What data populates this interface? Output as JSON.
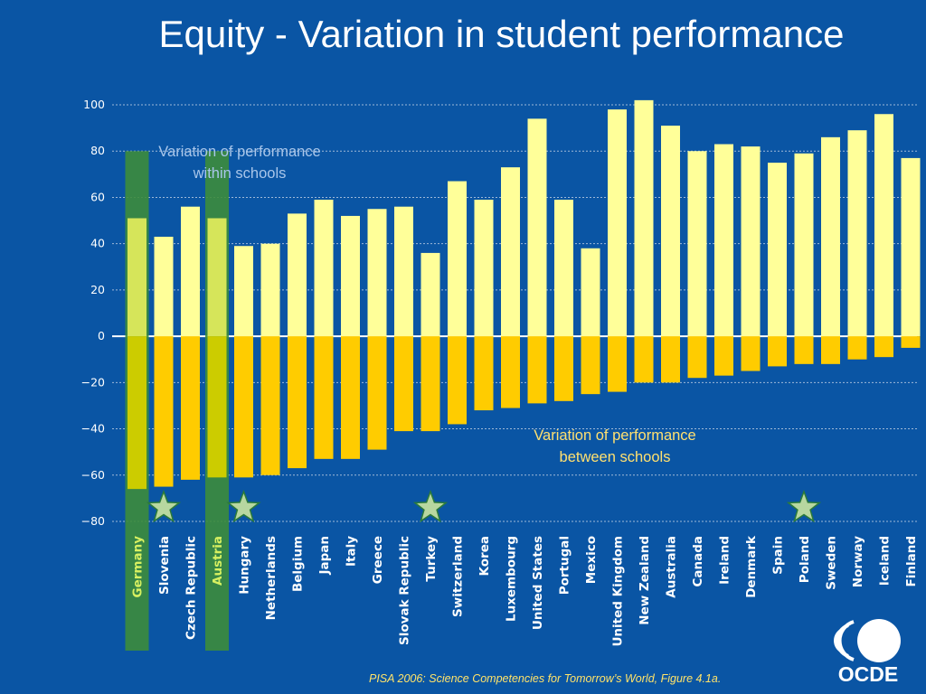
{
  "title": "Equity - Variation in student performance",
  "annotations": {
    "within": "Variation of performance within schools",
    "between": "Variation of performance between schools"
  },
  "source": "PISA 2006: Science Competencies for Tomorrow’s World, Figure 4.1a.",
  "logo": {
    "text": "OCDE",
    "name": "oecd-logo"
  },
  "colors": {
    "background": "#0a55a4",
    "within_bar": "#ffff99",
    "between_bar": "#ffcc00",
    "highlight": "#3c8c3c",
    "highlight_within": "#d6e55a",
    "highlight_between": "#cccc00",
    "star": "#b7d7a0"
  },
  "chart_data": {
    "type": "bar",
    "title": "",
    "xlabel": "",
    "ylabel": "",
    "ylim": [
      -80,
      100
    ],
    "yticks": [
      100,
      80,
      60,
      40,
      20,
      0,
      -20,
      -40,
      -60,
      -80
    ],
    "grid": true,
    "categories": [
      "Germany",
      "Slovenia",
      "Czech Republic",
      "Austria",
      "Hungary",
      "Netherlands",
      "Belgium",
      "Japan",
      "Italy",
      "Greece",
      "Slovak Republic",
      "Turkey",
      "Switzerland",
      "Korea",
      "Luxembourg",
      "United States",
      "Portugal",
      "Mexico",
      "United Kingdom",
      "New Zealand",
      "Australia",
      "Canada",
      "Ireland",
      "Denmark",
      "Spain",
      "Poland",
      "Sweden",
      "Norway",
      "Iceland",
      "Finland"
    ],
    "series": [
      {
        "name": "Variation of performance within schools",
        "values": [
          51,
          43,
          56,
          51,
          39,
          40,
          53,
          59,
          52,
          55,
          56,
          36,
          67,
          59,
          73,
          94,
          59,
          38,
          98,
          102,
          91,
          80,
          83,
          82,
          75,
          79,
          86,
          89,
          96,
          77
        ]
      },
      {
        "name": "Variation of performance between schools",
        "values": [
          -66,
          -65,
          -62,
          -61,
          -61,
          -60,
          -57,
          -53,
          -53,
          -49,
          -41,
          -41,
          -38,
          -32,
          -31,
          -29,
          -28,
          -25,
          -24,
          -20,
          -20,
          -18,
          -17,
          -15,
          -13,
          -12,
          -12,
          -10,
          -9,
          -5
        ]
      }
    ],
    "highlighted": [
      "Germany",
      "Austria"
    ],
    "starred": [
      "Slovenia",
      "Hungary",
      "Turkey",
      "Poland"
    ]
  }
}
